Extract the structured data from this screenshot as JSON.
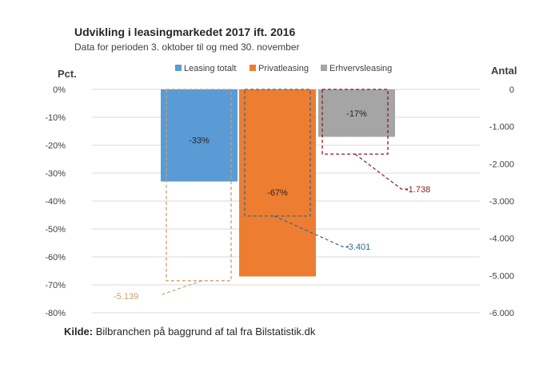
{
  "chart_data": {
    "type": "bar",
    "title": "Udvikling i leasingmarkedet 2017 ift. 2016",
    "subtitle": "Data for perioden 3. oktober til og med 30. november",
    "y_left_label": "Pct.",
    "y_right_label": "Antal",
    "y_left_ticks": [
      "0%",
      "-10%",
      "-20%",
      "-30%",
      "-40%",
      "-50%",
      "-60%",
      "-70%",
      "-80%"
    ],
    "y_right_ticks": [
      "0",
      "-1.000",
      "-2.000",
      "-3.000",
      "-4.000",
      "-5.000",
      "-6.000"
    ],
    "ylim_left": [
      -80,
      0
    ],
    "ylim_right": [
      -6000,
      0
    ],
    "legend_position": "top",
    "series": [
      {
        "name": "Leasing totalt",
        "color": "#5b9bd5",
        "pct": -33,
        "pct_label": "-33%",
        "count": -5139,
        "count_label": "-5.139",
        "count_color": "#c9a06a"
      },
      {
        "name": "Privatleasing",
        "color": "#ed7d31",
        "pct": -67,
        "pct_label": "-67%",
        "count": -3401,
        "count_label": "-3.401",
        "count_color": "#2e6d8e"
      },
      {
        "name": "Erhvervsleasing",
        "color": "#a5a5a5",
        "pct": -17,
        "pct_label": "-17%",
        "count": -1738,
        "count_label": "-1.738",
        "count_color": "#8b1a1a"
      }
    ]
  },
  "source": {
    "prefix": "Kilde:",
    "text": " Bilbranchen på baggrund af tal fra Bilstatistik.dk"
  }
}
